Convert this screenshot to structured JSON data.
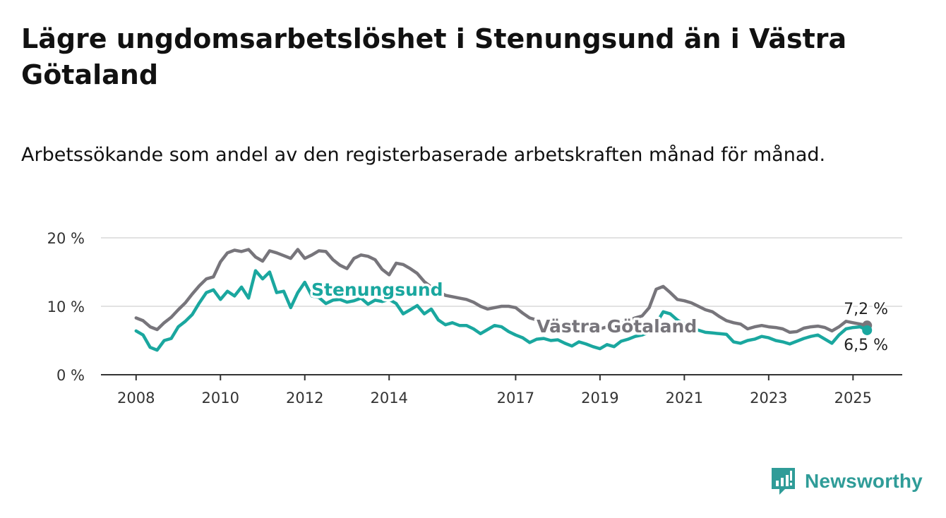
{
  "title": "Lägre ungdomsarbetslöshet i Stenungsund än i Västra Götaland",
  "subtitle": "Arbetssökande som andel av den registerbaserade arbetskraften månad för månad.",
  "brand": {
    "name": "Newsworthy",
    "icon": "newsworthy-logo-icon"
  },
  "colors": {
    "Stenungsund": "#1aa79f",
    "Västra Götaland": "#77757b",
    "grid": "#d9d9d9",
    "axis": "#333333"
  },
  "chart_data": {
    "type": "line",
    "x_ticks": [
      "2008",
      "2010",
      "2012",
      "2014",
      "2017",
      "2019",
      "2021",
      "2023",
      "2025"
    ],
    "y_ticks": [
      "0 %",
      "10 %",
      "20 %"
    ],
    "y_tick_values": [
      0,
      10,
      20
    ],
    "ylim": [
      0,
      20
    ],
    "xlim": [
      "2007-03",
      "2026-03"
    ],
    "grid": true,
    "legend": "inline labels",
    "series": [
      {
        "name": "Stenungsund",
        "end_label": "6,5 %",
        "values": [
          [
            "2008-01",
            6.4
          ],
          [
            "2008-03",
            5.8
          ],
          [
            "2008-05",
            4.0
          ],
          [
            "2008-07",
            3.6
          ],
          [
            "2008-09",
            5.0
          ],
          [
            "2008-11",
            5.3
          ],
          [
            "2009-01",
            7.0
          ],
          [
            "2009-03",
            7.8
          ],
          [
            "2009-05",
            8.8
          ],
          [
            "2009-07",
            10.5
          ],
          [
            "2009-09",
            12.0
          ],
          [
            "2009-11",
            12.4
          ],
          [
            "2010-01",
            11.0
          ],
          [
            "2010-03",
            12.2
          ],
          [
            "2010-05",
            11.5
          ],
          [
            "2010-07",
            12.8
          ],
          [
            "2010-09",
            11.2
          ],
          [
            "2010-11",
            15.2
          ],
          [
            "2011-01",
            14.0
          ],
          [
            "2011-03",
            15.0
          ],
          [
            "2011-05",
            12.0
          ],
          [
            "2011-07",
            12.2
          ],
          [
            "2011-09",
            9.8
          ],
          [
            "2011-11",
            12.0
          ],
          [
            "2012-01",
            13.5
          ],
          [
            "2012-03",
            11.5
          ],
          [
            "2012-05",
            11.3
          ],
          [
            "2012-07",
            10.4
          ],
          [
            "2012-09",
            10.9
          ],
          [
            "2012-11",
            11.0
          ],
          [
            "2013-01",
            10.6
          ],
          [
            "2013-03",
            10.8
          ],
          [
            "2013-05",
            11.2
          ],
          [
            "2013-07",
            10.3
          ],
          [
            "2013-09",
            10.9
          ],
          [
            "2013-11",
            10.7
          ],
          [
            "2014-01",
            11.0
          ],
          [
            "2014-03",
            10.4
          ],
          [
            "2014-05",
            8.9
          ],
          [
            "2014-07",
            9.5
          ],
          [
            "2014-09",
            10.1
          ],
          [
            "2014-11",
            8.9
          ],
          [
            "2015-01",
            9.6
          ],
          [
            "2015-03",
            8.0
          ],
          [
            "2015-05",
            7.3
          ],
          [
            "2015-07",
            7.6
          ],
          [
            "2015-09",
            7.2
          ],
          [
            "2015-11",
            7.2
          ],
          [
            "2016-01",
            6.7
          ],
          [
            "2016-03",
            6.0
          ],
          [
            "2016-05",
            6.6
          ],
          [
            "2016-07",
            7.2
          ],
          [
            "2016-09",
            7.0
          ],
          [
            "2016-11",
            6.3
          ],
          [
            "2017-01",
            5.8
          ],
          [
            "2017-03",
            5.4
          ],
          [
            "2017-05",
            4.7
          ],
          [
            "2017-07",
            5.2
          ],
          [
            "2017-09",
            5.3
          ],
          [
            "2017-11",
            5.0
          ],
          [
            "2018-01",
            5.1
          ],
          [
            "2018-03",
            4.6
          ],
          [
            "2018-05",
            4.2
          ],
          [
            "2018-07",
            4.8
          ],
          [
            "2018-09",
            4.5
          ],
          [
            "2018-11",
            4.1
          ],
          [
            "2019-01",
            3.8
          ],
          [
            "2019-03",
            4.4
          ],
          [
            "2019-05",
            4.1
          ],
          [
            "2019-07",
            4.9
          ],
          [
            "2019-09",
            5.2
          ],
          [
            "2019-11",
            5.6
          ],
          [
            "2020-01",
            5.8
          ],
          [
            "2020-03",
            6.2
          ],
          [
            "2020-05",
            7.5
          ],
          [
            "2020-07",
            9.2
          ],
          [
            "2020-09",
            8.9
          ],
          [
            "2020-11",
            8.0
          ],
          [
            "2021-01",
            7.4
          ],
          [
            "2021-03",
            6.8
          ],
          [
            "2021-05",
            6.5
          ],
          [
            "2021-07",
            6.2
          ],
          [
            "2021-09",
            6.1
          ],
          [
            "2021-11",
            6.0
          ],
          [
            "2022-01",
            5.9
          ],
          [
            "2022-03",
            4.8
          ],
          [
            "2022-05",
            4.6
          ],
          [
            "2022-07",
            5.0
          ],
          [
            "2022-09",
            5.2
          ],
          [
            "2022-11",
            5.6
          ],
          [
            "2023-01",
            5.4
          ],
          [
            "2023-03",
            5.0
          ],
          [
            "2023-05",
            4.8
          ],
          [
            "2023-07",
            4.5
          ],
          [
            "2023-09",
            4.9
          ],
          [
            "2023-11",
            5.3
          ],
          [
            "2024-01",
            5.6
          ],
          [
            "2024-03",
            5.8
          ],
          [
            "2024-05",
            5.2
          ],
          [
            "2024-07",
            4.6
          ],
          [
            "2024-09",
            5.8
          ],
          [
            "2024-11",
            6.7
          ],
          [
            "2025-01",
            6.9
          ],
          [
            "2025-03",
            7.0
          ],
          [
            "2025-05",
            6.5
          ]
        ]
      },
      {
        "name": "Västra Götaland",
        "end_label": "7,2 %",
        "values": [
          [
            "2008-01",
            8.3
          ],
          [
            "2008-03",
            7.9
          ],
          [
            "2008-05",
            7.0
          ],
          [
            "2008-07",
            6.6
          ],
          [
            "2008-09",
            7.6
          ],
          [
            "2008-11",
            8.4
          ],
          [
            "2009-01",
            9.5
          ],
          [
            "2009-03",
            10.5
          ],
          [
            "2009-05",
            11.8
          ],
          [
            "2009-07",
            13.0
          ],
          [
            "2009-09",
            14.0
          ],
          [
            "2009-11",
            14.3
          ],
          [
            "2010-01",
            16.5
          ],
          [
            "2010-03",
            17.8
          ],
          [
            "2010-05",
            18.2
          ],
          [
            "2010-07",
            18.0
          ],
          [
            "2010-09",
            18.3
          ],
          [
            "2010-11",
            17.2
          ],
          [
            "2011-01",
            16.6
          ],
          [
            "2011-03",
            18.1
          ],
          [
            "2011-05",
            17.8
          ],
          [
            "2011-07",
            17.4
          ],
          [
            "2011-09",
            17.0
          ],
          [
            "2011-11",
            18.3
          ],
          [
            "2012-01",
            17.0
          ],
          [
            "2012-03",
            17.5
          ],
          [
            "2012-05",
            18.1
          ],
          [
            "2012-07",
            18.0
          ],
          [
            "2012-09",
            16.8
          ],
          [
            "2012-11",
            16.0
          ],
          [
            "2013-01",
            15.5
          ],
          [
            "2013-03",
            17.0
          ],
          [
            "2013-05",
            17.5
          ],
          [
            "2013-07",
            17.3
          ],
          [
            "2013-09",
            16.8
          ],
          [
            "2013-11",
            15.4
          ],
          [
            "2014-01",
            14.6
          ],
          [
            "2014-03",
            16.3
          ],
          [
            "2014-05",
            16.1
          ],
          [
            "2014-07",
            15.5
          ],
          [
            "2014-09",
            14.8
          ],
          [
            "2014-11",
            13.6
          ],
          [
            "2015-01",
            12.8
          ],
          [
            "2015-03",
            12.2
          ],
          [
            "2015-05",
            11.6
          ],
          [
            "2015-07",
            11.4
          ],
          [
            "2015-09",
            11.2
          ],
          [
            "2015-11",
            11.0
          ],
          [
            "2016-01",
            10.6
          ],
          [
            "2016-03",
            10.0
          ],
          [
            "2016-05",
            9.6
          ],
          [
            "2016-07",
            9.8
          ],
          [
            "2016-09",
            10.0
          ],
          [
            "2016-11",
            10.0
          ],
          [
            "2017-01",
            9.8
          ],
          [
            "2017-03",
            9.0
          ],
          [
            "2017-05",
            8.3
          ],
          [
            "2017-07",
            8.0
          ],
          [
            "2017-09",
            7.4
          ],
          [
            "2017-11",
            7.0
          ],
          [
            "2018-01",
            7.2
          ],
          [
            "2018-03",
            6.8
          ],
          [
            "2018-05",
            6.5
          ],
          [
            "2018-07",
            6.7
          ],
          [
            "2018-09",
            6.6
          ],
          [
            "2018-11",
            6.8
          ],
          [
            "2019-01",
            6.7
          ],
          [
            "2019-03",
            7.0
          ],
          [
            "2019-05",
            7.2
          ],
          [
            "2019-07",
            7.5
          ],
          [
            "2019-09",
            7.9
          ],
          [
            "2019-11",
            8.3
          ],
          [
            "2020-01",
            8.6
          ],
          [
            "2020-03",
            9.8
          ],
          [
            "2020-05",
            12.5
          ],
          [
            "2020-07",
            12.9
          ],
          [
            "2020-09",
            12.0
          ],
          [
            "2020-11",
            11.0
          ],
          [
            "2021-01",
            10.8
          ],
          [
            "2021-03",
            10.5
          ],
          [
            "2021-05",
            10.0
          ],
          [
            "2021-07",
            9.5
          ],
          [
            "2021-09",
            9.2
          ],
          [
            "2021-11",
            8.5
          ],
          [
            "2022-01",
            7.9
          ],
          [
            "2022-03",
            7.6
          ],
          [
            "2022-05",
            7.4
          ],
          [
            "2022-07",
            6.7
          ],
          [
            "2022-09",
            7.0
          ],
          [
            "2022-11",
            7.2
          ],
          [
            "2023-01",
            7.0
          ],
          [
            "2023-03",
            6.9
          ],
          [
            "2023-05",
            6.7
          ],
          [
            "2023-07",
            6.2
          ],
          [
            "2023-09",
            6.3
          ],
          [
            "2023-11",
            6.8
          ],
          [
            "2024-01",
            7.0
          ],
          [
            "2024-03",
            7.1
          ],
          [
            "2024-05",
            6.9
          ],
          [
            "2024-07",
            6.4
          ],
          [
            "2024-09",
            7.0
          ],
          [
            "2024-11",
            7.8
          ],
          [
            "2025-01",
            7.6
          ],
          [
            "2025-03",
            7.4
          ],
          [
            "2025-05",
            7.2
          ]
        ]
      }
    ]
  }
}
